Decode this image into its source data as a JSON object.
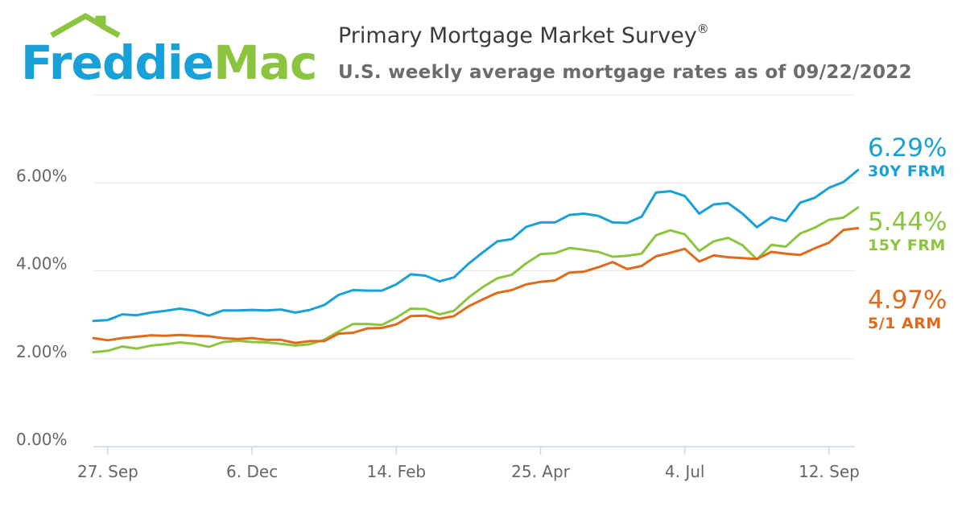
{
  "brand": {
    "name_part1": "Freddie",
    "name_part2": "Mac",
    "colors": {
      "blue": "#18a0d8",
      "green": "#8bc53f"
    }
  },
  "header": {
    "title": "Primary Mortgage Market Survey",
    "title_mark": "®",
    "subtitle": "U.S. weekly average mortgage rates as of 09/22/2022"
  },
  "chart_data": {
    "type": "line",
    "title": "Primary Mortgage Market Survey",
    "subtitle": "U.S. weekly average mortgage rates as of 09/22/2022",
    "x_tick_labels": [
      "27. Sep",
      "6. Dec",
      "14. Feb",
      "25. Apr",
      "4. Jul",
      "12. Sep"
    ],
    "x_tick_weeks": [
      1,
      11,
      21,
      31,
      41,
      51
    ],
    "y_tick_labels": [
      "0.00%",
      "2.00%",
      "4.00%",
      "6.00%"
    ],
    "y_ticks": [
      0,
      2,
      4,
      6
    ],
    "ylim": [
      0,
      8
    ],
    "weeks": 53,
    "series": [
      {
        "name": "30Y FRM",
        "color": "#18a0d8",
        "last_label": "6.29%",
        "values": [
          2.86,
          2.88,
          3.01,
          2.99,
          3.05,
          3.09,
          3.14,
          3.09,
          2.98,
          3.1,
          3.1,
          3.11,
          3.1,
          3.12,
          3.05,
          3.11,
          3.22,
          3.45,
          3.56,
          3.55,
          3.55,
          3.69,
          3.92,
          3.89,
          3.76,
          3.85,
          4.16,
          4.42,
          4.67,
          4.72,
          5.0,
          5.1,
          5.1,
          5.27,
          5.3,
          5.25,
          5.1,
          5.09,
          5.23,
          5.78,
          5.81,
          5.7,
          5.3,
          5.51,
          5.54,
          5.3,
          4.99,
          5.22,
          5.13,
          5.55,
          5.66,
          5.89,
          6.02,
          6.29
        ]
      },
      {
        "name": "15Y FRM",
        "color": "#8bc53f",
        "last_label": "5.44%",
        "values": [
          2.15,
          2.18,
          2.28,
          2.23,
          2.3,
          2.33,
          2.37,
          2.34,
          2.27,
          2.38,
          2.41,
          2.38,
          2.37,
          2.34,
          2.3,
          2.33,
          2.43,
          2.62,
          2.79,
          2.79,
          2.77,
          2.93,
          3.14,
          3.13,
          3.01,
          3.09,
          3.39,
          3.63,
          3.83,
          3.91,
          4.17,
          4.38,
          4.4,
          4.52,
          4.48,
          4.43,
          4.32,
          4.34,
          4.39,
          4.81,
          4.92,
          4.83,
          4.45,
          4.67,
          4.75,
          4.58,
          4.26,
          4.59,
          4.55,
          4.85,
          4.98,
          5.16,
          5.21,
          5.44
        ]
      },
      {
        "name": "5/1 ARM",
        "color": "#e06a1b",
        "last_label": "4.97%",
        "values": [
          2.47,
          2.42,
          2.47,
          2.5,
          2.53,
          2.52,
          2.54,
          2.52,
          2.51,
          2.47,
          2.45,
          2.47,
          2.43,
          2.43,
          2.36,
          2.4,
          2.4,
          2.57,
          2.59,
          2.69,
          2.7,
          2.78,
          2.97,
          2.98,
          2.91,
          2.97,
          3.19,
          3.35,
          3.5,
          3.56,
          3.69,
          3.75,
          3.78,
          3.96,
          3.98,
          4.08,
          4.2,
          4.04,
          4.11,
          4.33,
          4.41,
          4.5,
          4.21,
          4.35,
          4.31,
          4.29,
          4.27,
          4.43,
          4.39,
          4.36,
          4.51,
          4.64,
          4.93,
          4.97
        ]
      }
    ]
  }
}
